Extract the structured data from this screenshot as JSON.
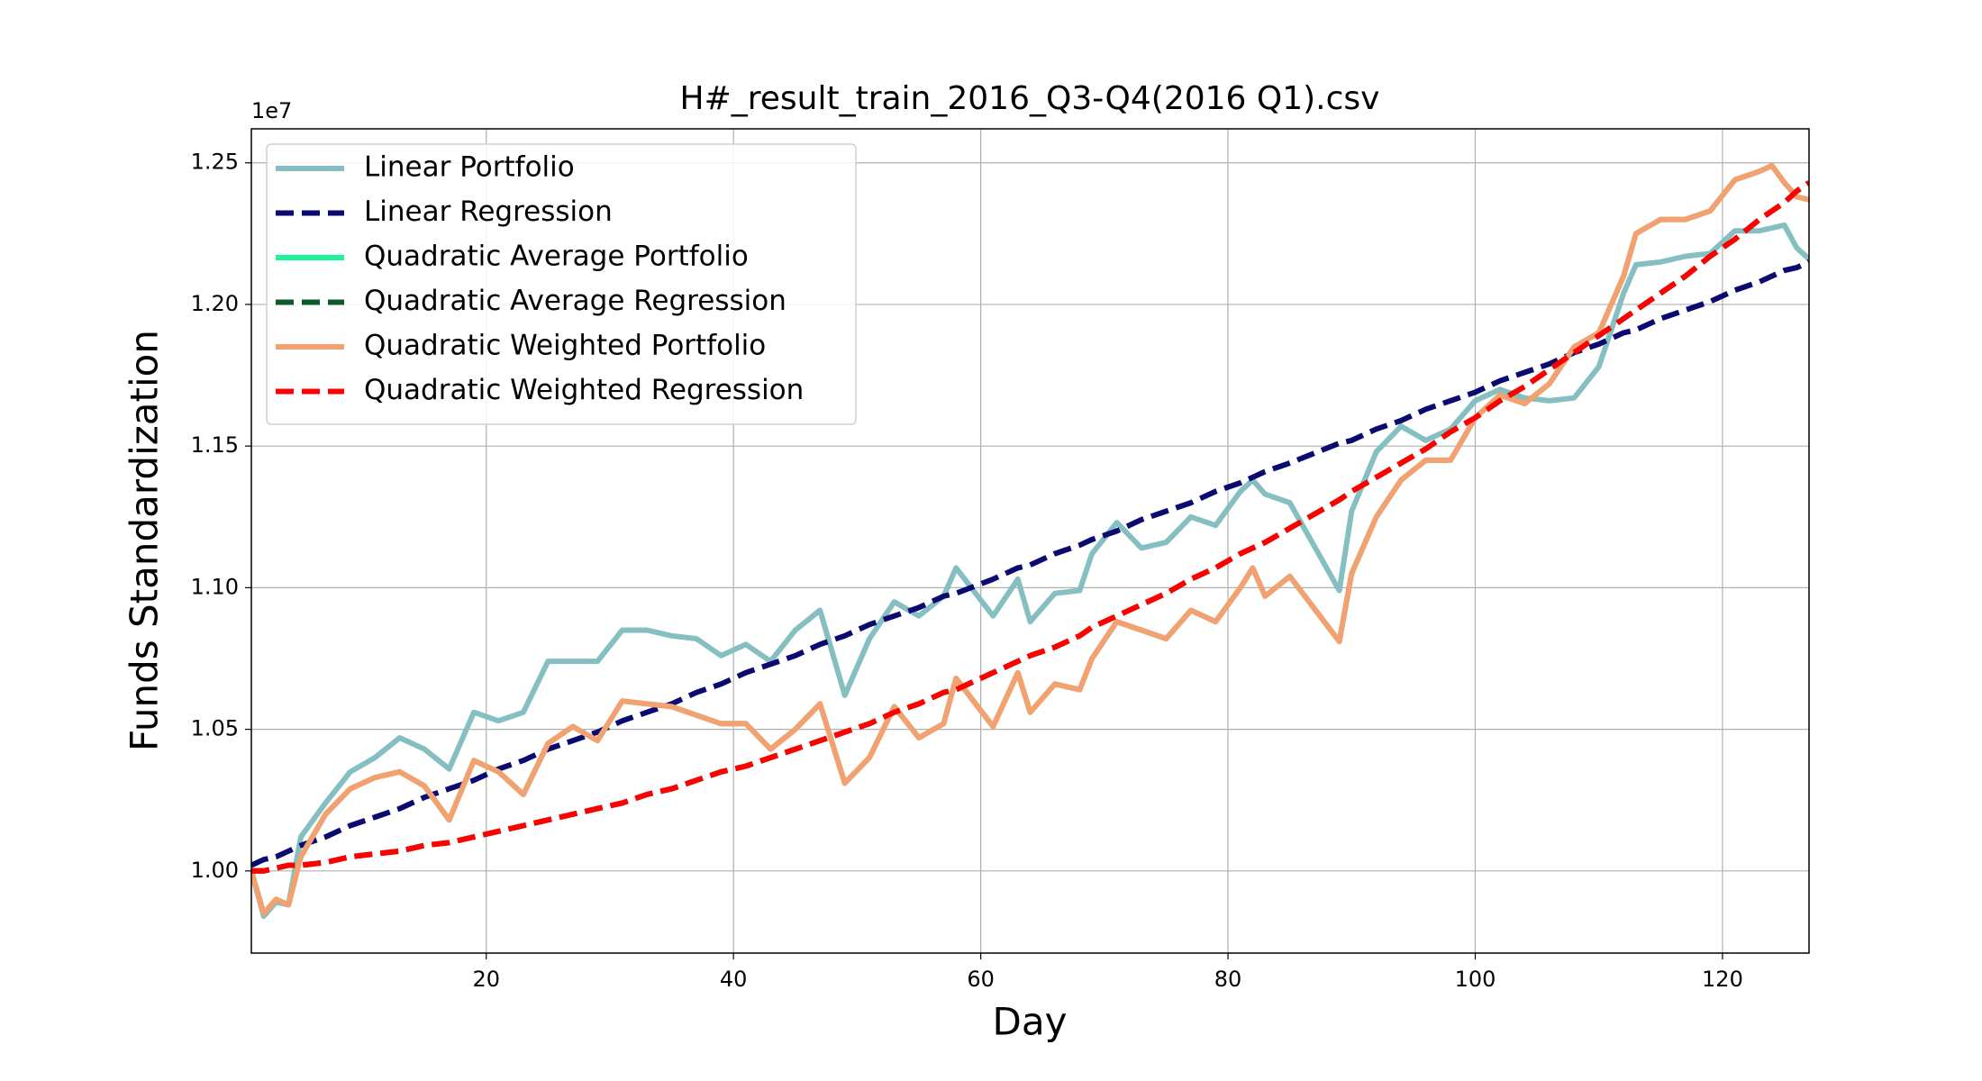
{
  "chart_data": {
    "type": "line",
    "title": "H#_result_train_2016_Q3-Q4(2016 Q1).csv",
    "x_label": "Day",
    "y_label": "Funds Standardization",
    "y_offset_label": "1e7",
    "xlim": [
      1,
      127
    ],
    "ylim": [
      0.971,
      1.262
    ],
    "xticks": [
      20,
      40,
      60,
      80,
      100,
      120
    ],
    "yticks": [
      {
        "value": 1.0,
        "label": "1.00"
      },
      {
        "value": 1.05,
        "label": "1.05"
      },
      {
        "value": 1.1,
        "label": "1.10"
      },
      {
        "value": 1.15,
        "label": "1.15"
      },
      {
        "value": 1.2,
        "label": "1.20"
      },
      {
        "value": 1.25,
        "label": "1.25"
      }
    ],
    "grid": true,
    "legend": "upper left",
    "x": [
      1,
      2,
      3,
      4,
      5,
      7,
      9,
      11,
      13,
      15,
      17,
      19,
      21,
      23,
      25,
      27,
      29,
      31,
      33,
      35,
      37,
      39,
      41,
      43,
      45,
      47,
      49,
      51,
      53,
      55,
      57,
      58,
      61,
      63,
      64,
      66,
      68,
      69,
      71,
      73,
      75,
      77,
      79,
      81,
      82,
      83,
      85,
      89,
      90,
      92,
      94,
      96,
      98,
      100,
      102,
      104,
      106,
      108,
      110,
      112,
      113,
      115,
      117,
      119,
      121,
      123,
      124,
      125,
      126,
      127
    ],
    "series": [
      {
        "name": "Linear Portfolio",
        "color": "#86bfc1",
        "dashed": false,
        "values": [
          1.0,
          0.984,
          0.989,
          0.988,
          1.012,
          1.024,
          1.035,
          1.04,
          1.047,
          1.043,
          1.036,
          1.056,
          1.053,
          1.056,
          1.074,
          1.074,
          1.074,
          1.085,
          1.085,
          1.083,
          1.082,
          1.076,
          1.08,
          1.074,
          1.085,
          1.092,
          1.062,
          1.082,
          1.095,
          1.09,
          1.097,
          1.107,
          1.09,
          1.103,
          1.088,
          1.098,
          1.099,
          1.112,
          1.123,
          1.114,
          1.116,
          1.125,
          1.122,
          1.134,
          1.138,
          1.133,
          1.13,
          1.099,
          1.127,
          1.148,
          1.157,
          1.152,
          1.156,
          1.166,
          1.17,
          1.167,
          1.166,
          1.167,
          1.178,
          1.204,
          1.214,
          1.215,
          1.217,
          1.218,
          1.226,
          1.226,
          1.227,
          1.228,
          1.22,
          1.216
        ]
      },
      {
        "name": "Linear Regression",
        "color": "#0a0a70",
        "dashed": true,
        "values": [
          1.002,
          1.004,
          1.005,
          1.007,
          1.009,
          1.012,
          1.016,
          1.019,
          1.022,
          1.026,
          1.029,
          1.032,
          1.036,
          1.039,
          1.043,
          1.046,
          1.049,
          1.053,
          1.056,
          1.059,
          1.063,
          1.066,
          1.07,
          1.073,
          1.076,
          1.08,
          1.083,
          1.087,
          1.09,
          1.093,
          1.097,
          1.098,
          1.103,
          1.107,
          1.108,
          1.112,
          1.115,
          1.117,
          1.12,
          1.124,
          1.127,
          1.13,
          1.134,
          1.137,
          1.139,
          1.141,
          1.144,
          1.151,
          1.152,
          1.156,
          1.159,
          1.163,
          1.166,
          1.169,
          1.173,
          1.176,
          1.179,
          1.183,
          1.186,
          1.19,
          1.191,
          1.195,
          1.198,
          1.201,
          1.205,
          1.208,
          1.21,
          1.212,
          1.213,
          1.215
        ]
      },
      {
        "name": "Quadratic Average Portfolio",
        "color": "#1ef59a",
        "dashed": false,
        "values": [
          1.0,
          0.985,
          0.99,
          0.988,
          1.005,
          1.02,
          1.029,
          1.033,
          1.035,
          1.03,
          1.018,
          1.039,
          1.035,
          1.027,
          1.045,
          1.051,
          1.046,
          1.06,
          1.059,
          1.058,
          1.055,
          1.052,
          1.052,
          1.043,
          1.05,
          1.059,
          1.031,
          1.04,
          1.058,
          1.047,
          1.052,
          1.068,
          1.051,
          1.07,
          1.056,
          1.066,
          1.064,
          1.075,
          1.088,
          1.085,
          1.082,
          1.092,
          1.088,
          1.1,
          1.107,
          1.097,
          1.104,
          1.081,
          1.105,
          1.125,
          1.138,
          1.145,
          1.145,
          1.16,
          1.168,
          1.165,
          1.172,
          1.185,
          1.19,
          1.21,
          1.225,
          1.23,
          1.23,
          1.233,
          1.244,
          1.247,
          1.249,
          1.243,
          1.238,
          1.237
        ]
      },
      {
        "name": "Quadratic Average Regression",
        "color": "#0b5a2b",
        "dashed": true,
        "values": [
          1.0,
          1.0,
          1.001,
          1.002,
          1.002,
          1.003,
          1.005,
          1.006,
          1.007,
          1.009,
          1.01,
          1.012,
          1.014,
          1.016,
          1.018,
          1.02,
          1.022,
          1.024,
          1.027,
          1.029,
          1.032,
          1.035,
          1.037,
          1.04,
          1.043,
          1.046,
          1.049,
          1.052,
          1.056,
          1.059,
          1.063,
          1.064,
          1.07,
          1.074,
          1.076,
          1.079,
          1.083,
          1.086,
          1.09,
          1.094,
          1.098,
          1.103,
          1.107,
          1.112,
          1.114,
          1.116,
          1.121,
          1.131,
          1.134,
          1.139,
          1.144,
          1.149,
          1.155,
          1.16,
          1.166,
          1.171,
          1.177,
          1.183,
          1.189,
          1.195,
          1.198,
          1.204,
          1.21,
          1.217,
          1.223,
          1.23,
          1.233,
          1.236,
          1.24,
          1.243
        ]
      },
      {
        "name": "Quadratic Weighted Portfolio",
        "color": "#f5a070",
        "dashed": false,
        "values": [
          1.0,
          0.985,
          0.99,
          0.988,
          1.005,
          1.02,
          1.029,
          1.033,
          1.035,
          1.03,
          1.018,
          1.039,
          1.035,
          1.027,
          1.045,
          1.051,
          1.046,
          1.06,
          1.059,
          1.058,
          1.055,
          1.052,
          1.052,
          1.043,
          1.05,
          1.059,
          1.031,
          1.04,
          1.058,
          1.047,
          1.052,
          1.068,
          1.051,
          1.07,
          1.056,
          1.066,
          1.064,
          1.075,
          1.088,
          1.085,
          1.082,
          1.092,
          1.088,
          1.1,
          1.107,
          1.097,
          1.104,
          1.081,
          1.105,
          1.125,
          1.138,
          1.145,
          1.145,
          1.16,
          1.168,
          1.165,
          1.172,
          1.185,
          1.19,
          1.21,
          1.225,
          1.23,
          1.23,
          1.233,
          1.244,
          1.247,
          1.249,
          1.243,
          1.238,
          1.237
        ]
      },
      {
        "name": "Quadratic Weighted Regression",
        "color": "#ff0000",
        "dashed": true,
        "values": [
          1.0,
          1.0,
          1.001,
          1.002,
          1.002,
          1.003,
          1.005,
          1.006,
          1.007,
          1.009,
          1.01,
          1.012,
          1.014,
          1.016,
          1.018,
          1.02,
          1.022,
          1.024,
          1.027,
          1.029,
          1.032,
          1.035,
          1.037,
          1.04,
          1.043,
          1.046,
          1.049,
          1.052,
          1.056,
          1.059,
          1.063,
          1.064,
          1.07,
          1.074,
          1.076,
          1.079,
          1.083,
          1.086,
          1.09,
          1.094,
          1.098,
          1.103,
          1.107,
          1.112,
          1.114,
          1.116,
          1.121,
          1.131,
          1.134,
          1.139,
          1.144,
          1.149,
          1.155,
          1.16,
          1.166,
          1.171,
          1.177,
          1.183,
          1.189,
          1.195,
          1.198,
          1.204,
          1.21,
          1.217,
          1.223,
          1.23,
          1.233,
          1.236,
          1.24,
          1.243
        ]
      }
    ]
  }
}
